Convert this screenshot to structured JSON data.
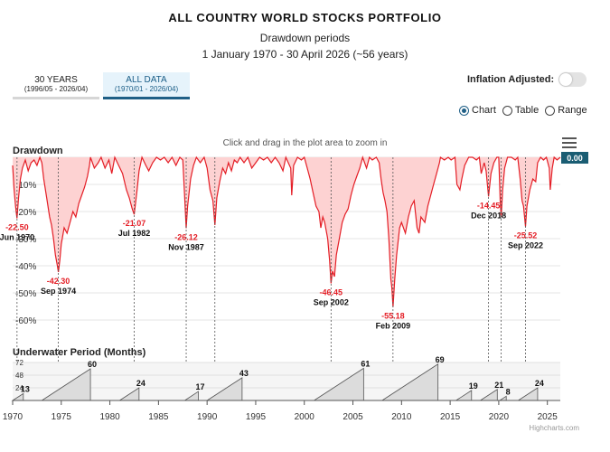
{
  "header": {
    "title": "ALL COUNTRY WORLD STOCKS PORTFOLIO",
    "subtitle": "Drawdown periods",
    "period": "1 January 1970 - 30 April 2026 (~56 years)"
  },
  "tabs": [
    {
      "label": "30 YEARS",
      "range": "(1996/05 - 2026/04)",
      "active": false
    },
    {
      "label": "ALL DATA",
      "range": "(1970/01 - 2026/04)",
      "active": true
    }
  ],
  "inflation_label": "Inflation Adjusted:",
  "inflation_on": false,
  "view_options": [
    {
      "label": "Chart",
      "selected": true
    },
    {
      "label": "Table",
      "selected": false
    },
    {
      "label": "Range",
      "selected": false
    }
  ],
  "zoom_hint": "Click and drag in the plot area to zoom in",
  "credits": "Highcharts.com",
  "chart_data": [
    {
      "type": "area",
      "title": "Drawdown",
      "x_range": [
        1970,
        2026.33
      ],
      "ylim": [
        -70,
        0
      ],
      "y_ticks": [
        "-10%",
        "-20%",
        "-30%",
        "-40%",
        "-50%",
        "-60%"
      ],
      "y_tick_values": [
        -10,
        -20,
        -30,
        -40,
        -50,
        -60
      ],
      "x_ticks": [
        "1970",
        "1975",
        "1980",
        "1985",
        "1990",
        "1995",
        "2000",
        "2005",
        "2010",
        "2015",
        "2020",
        "2025"
      ],
      "x_tick_values": [
        1970,
        1975,
        1980,
        1985,
        1990,
        1995,
        2000,
        2005,
        2010,
        2015,
        2020,
        2025
      ],
      "current_value": "0.00",
      "points": [
        [
          1970.0,
          -3
        ],
        [
          1970.15,
          -12
        ],
        [
          1970.3,
          -18
        ],
        [
          1970.45,
          -22.5
        ],
        [
          1970.6,
          -15
        ],
        [
          1970.8,
          -8
        ],
        [
          1971.0,
          -4
        ],
        [
          1971.3,
          -1
        ],
        [
          1971.6,
          -5
        ],
        [
          1971.9,
          -2
        ],
        [
          1972.2,
          -1
        ],
        [
          1972.5,
          -3
        ],
        [
          1972.8,
          0
        ],
        [
          1973.0,
          -2
        ],
        [
          1973.2,
          -8
        ],
        [
          1973.5,
          -15
        ],
        [
          1973.8,
          -22
        ],
        [
          1974.0,
          -25
        ],
        [
          1974.2,
          -30
        ],
        [
          1974.4,
          -36
        ],
        [
          1974.6,
          -40
        ],
        [
          1974.7,
          -42.3
        ],
        [
          1974.85,
          -38
        ],
        [
          1975.0,
          -32
        ],
        [
          1975.3,
          -26
        ],
        [
          1975.6,
          -28
        ],
        [
          1975.9,
          -24
        ],
        [
          1976.2,
          -20
        ],
        [
          1976.5,
          -22
        ],
        [
          1976.8,
          -17
        ],
        [
          1977.1,
          -14
        ],
        [
          1977.4,
          -11
        ],
        [
          1977.7,
          -7
        ],
        [
          1977.9,
          -3
        ],
        [
          1978.0,
          0
        ],
        [
          1978.4,
          -4
        ],
        [
          1978.8,
          -2
        ],
        [
          1979.1,
          0
        ],
        [
          1979.5,
          -4
        ],
        [
          1979.9,
          -1
        ],
        [
          1980.2,
          -6
        ],
        [
          1980.5,
          0
        ],
        [
          1980.9,
          -3
        ],
        [
          1981.3,
          -6
        ],
        [
          1981.7,
          -12
        ],
        [
          1982.0,
          -15
        ],
        [
          1982.3,
          -19
        ],
        [
          1982.5,
          -21.07
        ],
        [
          1982.8,
          -12
        ],
        [
          1983.0,
          -5
        ],
        [
          1983.3,
          0
        ],
        [
          1983.7,
          -3
        ],
        [
          1984.0,
          -5
        ],
        [
          1984.4,
          -2
        ],
        [
          1984.8,
          0
        ],
        [
          1985.2,
          -1
        ],
        [
          1985.6,
          0
        ],
        [
          1986.0,
          -2
        ],
        [
          1986.4,
          0
        ],
        [
          1986.8,
          -3
        ],
        [
          1987.2,
          0
        ],
        [
          1987.5,
          -1
        ],
        [
          1987.7,
          -15
        ],
        [
          1987.85,
          -26.12
        ],
        [
          1988.0,
          -18
        ],
        [
          1988.3,
          -8
        ],
        [
          1988.6,
          -3
        ],
        [
          1988.9,
          0
        ],
        [
          1989.3,
          -2
        ],
        [
          1989.7,
          0
        ],
        [
          1990.0,
          -4
        ],
        [
          1990.3,
          -12
        ],
        [
          1990.6,
          -16
        ],
        [
          1990.8,
          -25
        ],
        [
          1991.0,
          -15
        ],
        [
          1991.3,
          -9
        ],
        [
          1991.6,
          -4
        ],
        [
          1991.9,
          -6
        ],
        [
          1992.2,
          -2
        ],
        [
          1992.5,
          -5
        ],
        [
          1992.8,
          -1
        ],
        [
          1993.1,
          -2
        ],
        [
          1993.4,
          0
        ],
        [
          1993.8,
          -2
        ],
        [
          1994.2,
          0
        ],
        [
          1994.6,
          -4
        ],
        [
          1995.0,
          -2
        ],
        [
          1995.4,
          0
        ],
        [
          1995.8,
          -1
        ],
        [
          1996.2,
          0
        ],
        [
          1996.6,
          -2
        ],
        [
          1997.0,
          0
        ],
        [
          1997.4,
          -2
        ],
        [
          1997.8,
          -5
        ],
        [
          1998.1,
          0
        ],
        [
          1998.6,
          -4
        ],
        [
          1998.7,
          -14
        ],
        [
          1998.9,
          -3
        ],
        [
          1999.3,
          0
        ],
        [
          1999.7,
          -1
        ],
        [
          2000.0,
          0
        ],
        [
          2000.3,
          -4
        ],
        [
          2000.6,
          -8
        ],
        [
          2000.9,
          -13
        ],
        [
          2001.2,
          -18
        ],
        [
          2001.5,
          -20
        ],
        [
          2001.7,
          -26
        ],
        [
          2001.9,
          -22
        ],
        [
          2002.1,
          -24
        ],
        [
          2002.4,
          -30
        ],
        [
          2002.6,
          -38
        ],
        [
          2002.75,
          -46.45
        ],
        [
          2002.9,
          -42
        ],
        [
          2003.1,
          -44
        ],
        [
          2003.3,
          -36
        ],
        [
          2003.6,
          -30
        ],
        [
          2003.9,
          -24
        ],
        [
          2004.2,
          -21
        ],
        [
          2004.5,
          -19
        ],
        [
          2004.8,
          -14
        ],
        [
          2005.1,
          -10
        ],
        [
          2005.4,
          -7
        ],
        [
          2005.7,
          -4
        ],
        [
          2006.0,
          0
        ],
        [
          2006.4,
          -4
        ],
        [
          2006.7,
          0
        ],
        [
          2007.0,
          -1
        ],
        [
          2007.4,
          0
        ],
        [
          2007.7,
          -2
        ],
        [
          2007.9,
          -8
        ],
        [
          2008.1,
          -13
        ],
        [
          2008.3,
          -16
        ],
        [
          2008.5,
          -20
        ],
        [
          2008.7,
          -30
        ],
        [
          2008.9,
          -45
        ],
        [
          2009.0,
          -48
        ],
        [
          2009.12,
          -55.18
        ],
        [
          2009.3,
          -45
        ],
        [
          2009.5,
          -36
        ],
        [
          2009.8,
          -26
        ],
        [
          2010.0,
          -24
        ],
        [
          2010.4,
          -28
        ],
        [
          2010.7,
          -22
        ],
        [
          2011.0,
          -18
        ],
        [
          2011.3,
          -16
        ],
        [
          2011.6,
          -26
        ],
        [
          2011.8,
          -28
        ],
        [
          2012.0,
          -22
        ],
        [
          2012.4,
          -24
        ],
        [
          2012.7,
          -18
        ],
        [
          2013.0,
          -14
        ],
        [
          2013.3,
          -10
        ],
        [
          2013.6,
          -6
        ],
        [
          2013.9,
          -2
        ],
        [
          2014.0,
          0
        ],
        [
          2014.4,
          -1
        ],
        [
          2014.8,
          0
        ],
        [
          2015.1,
          -1
        ],
        [
          2015.5,
          0
        ],
        [
          2015.7,
          -10
        ],
        [
          2016.0,
          -12
        ],
        [
          2016.2,
          -8
        ],
        [
          2016.5,
          -3
        ],
        [
          2016.9,
          0
        ],
        [
          2017.3,
          0
        ],
        [
          2017.7,
          -1
        ],
        [
          2018.0,
          0
        ],
        [
          2018.2,
          -6
        ],
        [
          2018.5,
          -2
        ],
        [
          2018.7,
          -5
        ],
        [
          2018.95,
          -14.45
        ],
        [
          2019.2,
          -6
        ],
        [
          2019.5,
          -2
        ],
        [
          2019.8,
          0
        ],
        [
          2020.0,
          0
        ],
        [
          2020.15,
          -16
        ],
        [
          2020.25,
          -22
        ],
        [
          2020.4,
          -12
        ],
        [
          2020.6,
          -4
        ],
        [
          2020.9,
          0
        ],
        [
          2021.3,
          0
        ],
        [
          2021.7,
          -1
        ],
        [
          2021.95,
          0
        ],
        [
          2022.2,
          -8
        ],
        [
          2022.4,
          -16
        ],
        [
          2022.55,
          -18
        ],
        [
          2022.75,
          -25.52
        ],
        [
          2022.9,
          -18
        ],
        [
          2023.2,
          -12
        ],
        [
          2023.5,
          -8
        ],
        [
          2023.8,
          -9
        ],
        [
          2024.0,
          -2
        ],
        [
          2024.3,
          0
        ],
        [
          2024.6,
          -1
        ],
        [
          2024.9,
          0
        ],
        [
          2025.2,
          -4
        ],
        [
          2025.3,
          -12
        ],
        [
          2025.5,
          -4
        ],
        [
          2025.7,
          0
        ],
        [
          2026.0,
          -1
        ],
        [
          2026.33,
          0
        ]
      ],
      "annotations": [
        {
          "x": 1970.45,
          "value": "-22.50",
          "date": "Jun 1970"
        },
        {
          "x": 1974.7,
          "value": "-42.30",
          "date": "Sep 1974"
        },
        {
          "x": 1982.5,
          "value": "-21.07",
          "date": "Jul 1982"
        },
        {
          "x": 1987.85,
          "value": "-26.12",
          "date": "Nov 1987"
        },
        {
          "x": 2002.75,
          "value": "-46.45",
          "date": "Sep 2002"
        },
        {
          "x": 2009.12,
          "value": "-55.18",
          "date": "Feb 2009"
        },
        {
          "x": 2018.95,
          "value": "-14.45",
          "date": "Dec 2018"
        },
        {
          "x": 2022.75,
          "value": "-25.52",
          "date": "Sep 2022"
        }
      ],
      "extra_guides": [
        1990.8,
        2020.25
      ]
    },
    {
      "type": "area",
      "title": "Underwater Period (Months)",
      "ylim": [
        0,
        72
      ],
      "y_ticks": [
        "24",
        "48",
        "72"
      ],
      "y_tick_values": [
        24,
        48,
        72
      ],
      "periods": [
        {
          "start": 1970.0,
          "end": 1971.1,
          "value": 13
        },
        {
          "start": 1973.0,
          "end": 1978.0,
          "value": 60
        },
        {
          "start": 1981.0,
          "end": 1983.0,
          "value": 24
        },
        {
          "start": 1987.7,
          "end": 1989.1,
          "value": 17
        },
        {
          "start": 1990.0,
          "end": 1993.6,
          "value": 43
        },
        {
          "start": 2001.0,
          "end": 2006.1,
          "value": 61
        },
        {
          "start": 2008.0,
          "end": 2013.75,
          "value": 69
        },
        {
          "start": 2015.6,
          "end": 2017.2,
          "value": 19
        },
        {
          "start": 2018.1,
          "end": 2019.85,
          "value": 21
        },
        {
          "start": 2020.1,
          "end": 2020.77,
          "value": 8
        },
        {
          "start": 2022.0,
          "end": 2024.0,
          "value": 24
        }
      ]
    }
  ]
}
